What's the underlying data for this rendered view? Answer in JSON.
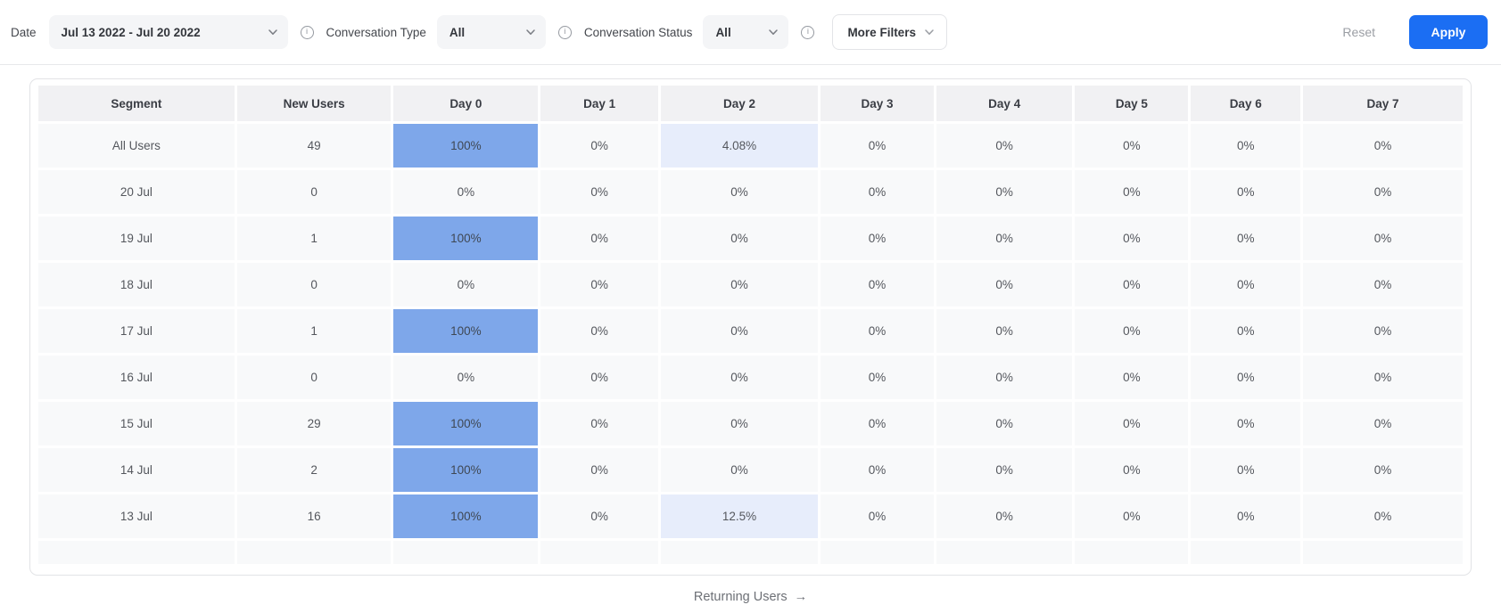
{
  "filter_bar": {
    "date_label": "Date",
    "date_value": "Jul 13 2022 - Jul 20 2022",
    "conversation_type_label": "Conversation Type",
    "conversation_type_value": "All",
    "conversation_status_label": "Conversation Status",
    "conversation_status_value": "All",
    "more_filters_label": "More Filters",
    "reset_label": "Reset",
    "apply_label": "Apply",
    "info_icon_glyph": "i"
  },
  "colors": {
    "accent_blue": "#1b6ef3",
    "cell_highlight_strong": "#7ea7ea",
    "cell_highlight_light": "#e7edfb"
  },
  "table": {
    "columns": [
      "Segment",
      "New Users",
      "Day 0",
      "Day 1",
      "Day 2",
      "Day 3",
      "Day 4",
      "Day 5",
      "Day 6",
      "Day 7"
    ],
    "rows": [
      {
        "segment": "All Users",
        "new_users": "49",
        "days": [
          {
            "text": "100%",
            "hl": "strong"
          },
          {
            "text": "0%",
            "hl": "none"
          },
          {
            "text": "4.08%",
            "hl": "light"
          },
          {
            "text": "0%",
            "hl": "none"
          },
          {
            "text": "0%",
            "hl": "none"
          },
          {
            "text": "0%",
            "hl": "none"
          },
          {
            "text": "0%",
            "hl": "none"
          },
          {
            "text": "0%",
            "hl": "none"
          }
        ]
      },
      {
        "segment": "20 Jul",
        "new_users": "0",
        "days": [
          {
            "text": "0%",
            "hl": "none"
          },
          {
            "text": "0%",
            "hl": "none"
          },
          {
            "text": "0%",
            "hl": "none"
          },
          {
            "text": "0%",
            "hl": "none"
          },
          {
            "text": "0%",
            "hl": "none"
          },
          {
            "text": "0%",
            "hl": "none"
          },
          {
            "text": "0%",
            "hl": "none"
          },
          {
            "text": "0%",
            "hl": "none"
          }
        ]
      },
      {
        "segment": "19 Jul",
        "new_users": "1",
        "days": [
          {
            "text": "100%",
            "hl": "strong"
          },
          {
            "text": "0%",
            "hl": "none"
          },
          {
            "text": "0%",
            "hl": "none"
          },
          {
            "text": "0%",
            "hl": "none"
          },
          {
            "text": "0%",
            "hl": "none"
          },
          {
            "text": "0%",
            "hl": "none"
          },
          {
            "text": "0%",
            "hl": "none"
          },
          {
            "text": "0%",
            "hl": "none"
          }
        ]
      },
      {
        "segment": "18 Jul",
        "new_users": "0",
        "days": [
          {
            "text": "0%",
            "hl": "none"
          },
          {
            "text": "0%",
            "hl": "none"
          },
          {
            "text": "0%",
            "hl": "none"
          },
          {
            "text": "0%",
            "hl": "none"
          },
          {
            "text": "0%",
            "hl": "none"
          },
          {
            "text": "0%",
            "hl": "none"
          },
          {
            "text": "0%",
            "hl": "none"
          },
          {
            "text": "0%",
            "hl": "none"
          }
        ]
      },
      {
        "segment": "17 Jul",
        "new_users": "1",
        "days": [
          {
            "text": "100%",
            "hl": "strong"
          },
          {
            "text": "0%",
            "hl": "none"
          },
          {
            "text": "0%",
            "hl": "none"
          },
          {
            "text": "0%",
            "hl": "none"
          },
          {
            "text": "0%",
            "hl": "none"
          },
          {
            "text": "0%",
            "hl": "none"
          },
          {
            "text": "0%",
            "hl": "none"
          },
          {
            "text": "0%",
            "hl": "none"
          }
        ]
      },
      {
        "segment": "16 Jul",
        "new_users": "0",
        "days": [
          {
            "text": "0%",
            "hl": "none"
          },
          {
            "text": "0%",
            "hl": "none"
          },
          {
            "text": "0%",
            "hl": "none"
          },
          {
            "text": "0%",
            "hl": "none"
          },
          {
            "text": "0%",
            "hl": "none"
          },
          {
            "text": "0%",
            "hl": "none"
          },
          {
            "text": "0%",
            "hl": "none"
          },
          {
            "text": "0%",
            "hl": "none"
          }
        ]
      },
      {
        "segment": "15 Jul",
        "new_users": "29",
        "days": [
          {
            "text": "100%",
            "hl": "strong"
          },
          {
            "text": "0%",
            "hl": "none"
          },
          {
            "text": "0%",
            "hl": "none"
          },
          {
            "text": "0%",
            "hl": "none"
          },
          {
            "text": "0%",
            "hl": "none"
          },
          {
            "text": "0%",
            "hl": "none"
          },
          {
            "text": "0%",
            "hl": "none"
          },
          {
            "text": "0%",
            "hl": "none"
          }
        ]
      },
      {
        "segment": "14 Jul",
        "new_users": "2",
        "days": [
          {
            "text": "100%",
            "hl": "strong"
          },
          {
            "text": "0%",
            "hl": "none"
          },
          {
            "text": "0%",
            "hl": "none"
          },
          {
            "text": "0%",
            "hl": "none"
          },
          {
            "text": "0%",
            "hl": "none"
          },
          {
            "text": "0%",
            "hl": "none"
          },
          {
            "text": "0%",
            "hl": "none"
          },
          {
            "text": "0%",
            "hl": "none"
          }
        ]
      },
      {
        "segment": "13 Jul",
        "new_users": "16",
        "days": [
          {
            "text": "100%",
            "hl": "strong"
          },
          {
            "text": "0%",
            "hl": "none"
          },
          {
            "text": "12.5%",
            "hl": "light"
          },
          {
            "text": "0%",
            "hl": "none"
          },
          {
            "text": "0%",
            "hl": "none"
          },
          {
            "text": "0%",
            "hl": "none"
          },
          {
            "text": "0%",
            "hl": "none"
          },
          {
            "text": "0%",
            "hl": "none"
          }
        ]
      }
    ]
  },
  "footer": {
    "returning_users_label": "Returning Users",
    "arrow_glyph": "→"
  }
}
